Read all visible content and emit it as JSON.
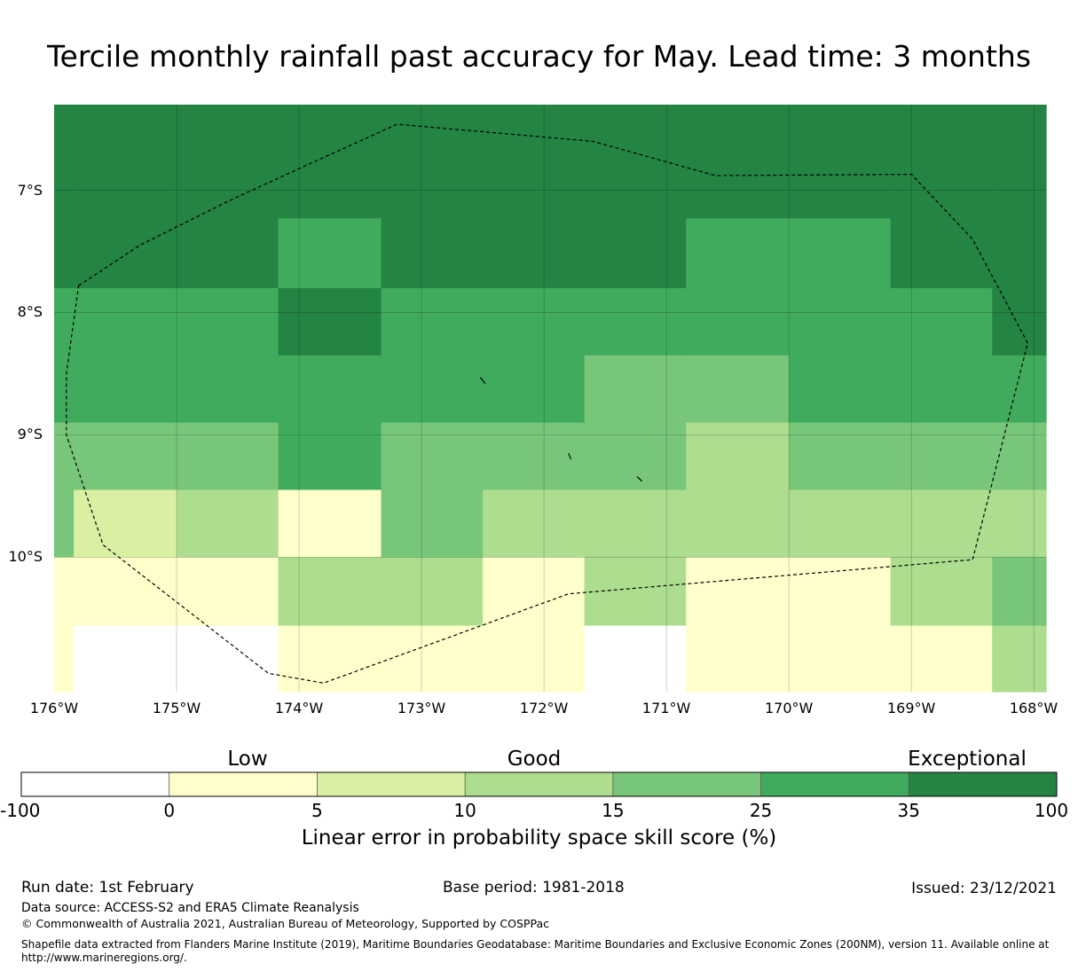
{
  "title": "Tercile monthly rainfall past accuracy for May. Lead time: 3 months",
  "map": {
    "lon_range": [
      -176.0,
      -167.9
    ],
    "lat_range": [
      -6.3,
      -11.1
    ],
    "lat_labels": [
      {
        "value": -7,
        "label": "7°S"
      },
      {
        "value": -8,
        "label": "8°S"
      },
      {
        "value": -9,
        "label": "9°S"
      },
      {
        "value": -10,
        "label": "10°S"
      }
    ],
    "lon_labels": [
      {
        "value": -176,
        "label": "176°W"
      },
      {
        "value": -175,
        "label": "175°W"
      },
      {
        "value": -174,
        "label": "174°W"
      },
      {
        "value": -173,
        "label": "173°W"
      },
      {
        "value": -172,
        "label": "172°W"
      },
      {
        "value": -171,
        "label": "171°W"
      },
      {
        "value": -170,
        "label": "170°W"
      },
      {
        "value": -169,
        "label": "169°W"
      },
      {
        "value": -168,
        "label": "168°W"
      }
    ],
    "lon_edges": [
      -176.0,
      -175.84,
      -175.0,
      -174.17,
      -173.33,
      -172.5,
      -171.67,
      -170.84,
      -170.0,
      -169.17,
      -168.34,
      -167.9
    ],
    "lat_edges": [
      -6.3,
      -7.23,
      -7.8,
      -8.35,
      -8.9,
      -9.45,
      -10.0,
      -10.56,
      -11.1
    ],
    "grid_levels": [
      [
        6,
        6,
        6,
        6,
        6,
        6,
        6,
        6,
        6,
        6,
        6
      ],
      [
        6,
        6,
        6,
        5,
        6,
        6,
        6,
        5,
        5,
        6,
        6
      ],
      [
        5,
        5,
        5,
        6,
        5,
        5,
        5,
        5,
        5,
        5,
        6
      ],
      [
        5,
        5,
        5,
        5,
        5,
        5,
        4,
        4,
        5,
        5,
        5
      ],
      [
        4,
        4,
        4,
        5,
        4,
        4,
        4,
        3,
        4,
        4,
        4
      ],
      [
        4,
        2,
        3,
        1,
        4,
        3,
        3,
        3,
        3,
        3,
        3
      ],
      [
        1,
        1,
        1,
        3,
        3,
        1,
        3,
        1,
        1,
        3,
        4
      ],
      [
        1,
        0,
        0,
        1,
        1,
        1,
        0,
        1,
        1,
        1,
        3
      ]
    ],
    "eez_boundary": [
      [
        -175.8,
        -7.78
      ],
      [
        -175.3,
        -7.45
      ],
      [
        -174.6,
        -7.1
      ],
      [
        -173.95,
        -6.8
      ],
      [
        -173.2,
        -6.46
      ],
      [
        -171.6,
        -6.6
      ],
      [
        -170.6,
        -6.88
      ],
      [
        -169.0,
        -6.87
      ],
      [
        -168.5,
        -7.4
      ],
      [
        -168.05,
        -8.25
      ],
      [
        -168.5,
        -10.02
      ],
      [
        -171.8,
        -10.3
      ],
      [
        -173.8,
        -11.03
      ],
      [
        -174.25,
        -10.95
      ],
      [
        -175.6,
        -9.9
      ],
      [
        -175.9,
        -9.0
      ],
      [
        -175.9,
        -8.5
      ],
      [
        -175.8,
        -7.78
      ]
    ],
    "islands": [
      [
        [
          -172.52,
          -8.53
        ],
        [
          -172.48,
          -8.58
        ]
      ],
      [
        [
          -171.8,
          -9.15
        ],
        [
          -171.78,
          -9.2
        ]
      ],
      [
        [
          -171.24,
          -9.34
        ],
        [
          -171.2,
          -9.38
        ]
      ]
    ]
  },
  "colorbar": {
    "category_labels": [
      "Low",
      "Good",
      "Exceptional"
    ],
    "colors": [
      "#ffffff",
      "#ffffcc",
      "#d9f0a3",
      "#addd8e",
      "#78c679",
      "#41ab5d",
      "#238443"
    ],
    "ticks": [
      "-100",
      "0",
      "5",
      "10",
      "15",
      "25",
      "35",
      "100"
    ],
    "label": "Linear error in probability space skill score (%)"
  },
  "footer": {
    "run_date": "Run date: 1st February",
    "base_period": "Base period: 1981-2018",
    "issued": "Issued: 23/12/2021",
    "data_source": "Data source: ACCESS-S2 and ERA5 Climate Reanalysis",
    "copyright": "© Commonwealth of Australia 2021, Australian Bureau of Meteorology, Supported by COSPPac",
    "shapefile_line1": "Shapefile data extracted from Flanders Marine Institute (2019), Maritime Boundaries Geodatabase: Maritime Boundaries and Exclusive Economic Zones (200NM), version 11. Available online at",
    "shapefile_line2": "http://www.marineregions.org/."
  }
}
